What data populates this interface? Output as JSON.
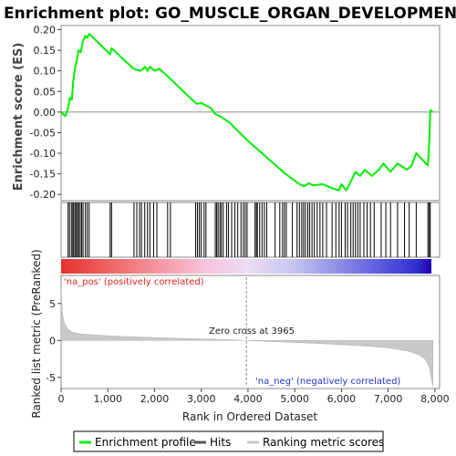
{
  "title": "Enrichment plot: GO_MUSCLE_ORGAN_DEVELOPMENT",
  "colors": {
    "profile": "#00ee00",
    "hits": "#000000",
    "ranking": "#c8c8c8",
    "pos_label": "#dd2222",
    "neg_label": "#2233cc",
    "zero_line": "#888888"
  },
  "chart_data": [
    {
      "type": "line",
      "panel": "enrichment-profile",
      "ylabel": "Enrichment score (ES)",
      "xlim": [
        0,
        8100
      ],
      "ylim": [
        -0.215,
        0.21
      ],
      "yticks": [
        0.2,
        0.15,
        0.1,
        0.05,
        0.0,
        -0.05,
        -0.1,
        -0.15,
        -0.2
      ],
      "ytick_labels": [
        "0.20",
        "0.15",
        "0.10",
        "0.05",
        "0.00",
        "-0.05",
        "-0.10",
        "-0.15",
        "-0.20"
      ],
      "series": [
        {
          "name": "Enrichment profile",
          "points": [
            [
              0,
              0.0
            ],
            [
              90,
              -0.01
            ],
            [
              150,
              0.01
            ],
            [
              190,
              0.035
            ],
            [
              230,
              0.03
            ],
            [
              260,
              0.075
            ],
            [
              300,
              0.11
            ],
            [
              330,
              0.12
            ],
            [
              370,
              0.15
            ],
            [
              420,
              0.145
            ],
            [
              460,
              0.17
            ],
            [
              520,
              0.185
            ],
            [
              560,
              0.18
            ],
            [
              600,
              0.19
            ],
            [
              1050,
              0.14
            ],
            [
              1080,
              0.155
            ],
            [
              1550,
              0.105
            ],
            [
              1700,
              0.1
            ],
            [
              1800,
              0.11
            ],
            [
              1850,
              0.1
            ],
            [
              1900,
              0.11
            ],
            [
              2000,
              0.1
            ],
            [
              2100,
              0.105
            ],
            [
              2300,
              0.085
            ],
            [
              2800,
              0.03
            ],
            [
              2900,
              0.02
            ],
            [
              3000,
              0.022
            ],
            [
              3200,
              0.01
            ],
            [
              3300,
              -0.005
            ],
            [
              3400,
              -0.01
            ],
            [
              3600,
              -0.025
            ],
            [
              4000,
              -0.07
            ],
            [
              4300,
              -0.1
            ],
            [
              4800,
              -0.15
            ],
            [
              5100,
              -0.175
            ],
            [
              5200,
              -0.18
            ],
            [
              5300,
              -0.173
            ],
            [
              5400,
              -0.178
            ],
            [
              5600,
              -0.175
            ],
            [
              5800,
              -0.185
            ],
            [
              5950,
              -0.19
            ],
            [
              6000,
              -0.175
            ],
            [
              6100,
              -0.19
            ],
            [
              6150,
              -0.18
            ],
            [
              6300,
              -0.145
            ],
            [
              6400,
              -0.155
            ],
            [
              6500,
              -0.14
            ],
            [
              6650,
              -0.155
            ],
            [
              6800,
              -0.14
            ],
            [
              6900,
              -0.125
            ],
            [
              7050,
              -0.145
            ],
            [
              7200,
              -0.125
            ],
            [
              7400,
              -0.14
            ],
            [
              7500,
              -0.13
            ],
            [
              7600,
              -0.1
            ],
            [
              7850,
              -0.13
            ],
            [
              7880,
              -0.07
            ],
            [
              7900,
              0.005
            ],
            [
              7950,
              0.0
            ]
          ]
        }
      ]
    },
    {
      "type": "scatter",
      "panel": "hits",
      "legend_label": "Hits",
      "x": [
        150,
        180,
        220,
        250,
        270,
        300,
        330,
        350,
        380,
        410,
        440,
        470,
        520,
        560,
        600,
        1050,
        1080,
        1560,
        1620,
        1680,
        1720,
        1790,
        1850,
        1900,
        1980,
        2050,
        2280,
        2340,
        2880,
        2920,
        2960,
        3000,
        3060,
        3100,
        3300,
        3330,
        3360,
        3400,
        3430,
        3470,
        3540,
        3580,
        3650,
        3720,
        3780,
        3850,
        3900,
        3940,
        3980,
        4150,
        4180,
        4200,
        4250,
        4300,
        4350,
        4400,
        4580,
        4680,
        4740,
        4780,
        4820,
        4950,
        5050,
        5100,
        5150,
        5190,
        5230,
        5280,
        5320,
        5370,
        5420,
        5480,
        5540,
        5600,
        5680,
        5800,
        5880,
        5950,
        6000,
        6080,
        6130,
        6200,
        6250,
        6300,
        6350,
        6400,
        6480,
        6550,
        6620,
        6700,
        6850,
        6950,
        7050,
        7200,
        7350,
        7450,
        7600,
        7850,
        7880,
        7900
      ]
    },
    {
      "type": "area",
      "panel": "ranked-list",
      "ylabel": "Ranked list metric (PreRanked)",
      "xlabel": "Rank in Ordered Dataset",
      "xlim": [
        0,
        8100
      ],
      "ylim": [
        -6.5,
        8.8
      ],
      "xticks": [
        0,
        1000,
        2000,
        3000,
        4000,
        5000,
        6000,
        7000,
        8000
      ],
      "xtick_labels": [
        "0",
        "1,000",
        "2,000",
        "3,000",
        "4,000",
        "5,000",
        "6,000",
        "7,000",
        "8,000"
      ],
      "yticks": [
        5,
        0,
        -5
      ],
      "ytick_labels": [
        "5",
        "0",
        "-5"
      ],
      "series": [
        {
          "name": "Ranking metric scores",
          "points": [
            [
              0,
              7.0
            ],
            [
              15,
              5.0
            ],
            [
              40,
              3.2
            ],
            [
              80,
              2.2
            ],
            [
              150,
              1.5
            ],
            [
              250,
              1.1
            ],
            [
              400,
              0.9
            ],
            [
              800,
              0.7
            ],
            [
              1500,
              0.5
            ],
            [
              2500,
              0.3
            ],
            [
              3500,
              0.12
            ],
            [
              3965,
              0.0
            ],
            [
              4500,
              -0.15
            ],
            [
              5500,
              -0.4
            ],
            [
              6500,
              -0.75
            ],
            [
              7000,
              -1.0
            ],
            [
              7400,
              -1.4
            ],
            [
              7650,
              -1.9
            ],
            [
              7800,
              -2.6
            ],
            [
              7880,
              -3.6
            ],
            [
              7930,
              -5.5
            ],
            [
              7960,
              -6.2
            ]
          ]
        }
      ],
      "annotations": {
        "zero_cross": "Zero cross at 3965",
        "zero_cross_x": 3965,
        "positive": "'na_pos' (positively correlated)",
        "negative": "'na_neg' (negatively correlated)"
      }
    }
  ],
  "legend": {
    "items": [
      {
        "label": "Enrichment profile",
        "color": "#00ee00"
      },
      {
        "label": "Hits",
        "color": "#555555"
      },
      {
        "label": "Ranking metric scores",
        "color": "#c8c8c8"
      }
    ]
  }
}
